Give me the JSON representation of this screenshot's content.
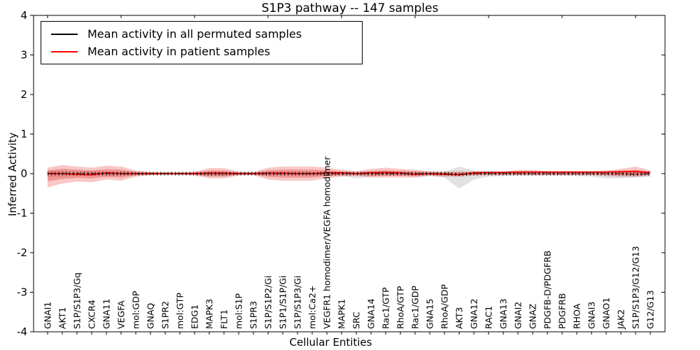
{
  "chart_data": {
    "type": "line",
    "title": "S1P3 pathway -- 147 samples",
    "xlabel": "Cellular Entities",
    "ylabel": "Inferred Activity",
    "ylim": [
      -4,
      4
    ],
    "yticks": [
      "-4",
      "-3",
      "-2",
      "-1",
      "0",
      "1",
      "2",
      "3",
      "4"
    ],
    "grid": false,
    "legend_position": "upper left",
    "sample_count": 147,
    "series": [
      {
        "name": "Mean activity in all permuted samples",
        "color": "#000000",
        "band_color": "#9e9e9e",
        "band_opacity": 0.3
      },
      {
        "name": "Mean activity in patient samples",
        "color": "#ff0000",
        "band_color": "#e53935",
        "band_opacity": 0.28
      }
    ],
    "entities": [
      {
        "label": "GNAI1",
        "permuted_mean": 0.0,
        "permuted_band": [
          -0.1,
          0.08
        ],
        "patient_mean": 0.0,
        "patient_band": [
          -0.35,
          0.15
        ]
      },
      {
        "label": "AKT1",
        "permuted_mean": 0.0,
        "permuted_band": [
          -0.08,
          0.08
        ],
        "patient_mean": 0.0,
        "patient_band": [
          -0.25,
          0.22
        ]
      },
      {
        "label": "S1P/S1P3/Gq",
        "permuted_mean": 0.0,
        "permuted_band": [
          -0.06,
          0.06
        ],
        "patient_mean": -0.02,
        "patient_band": [
          -0.2,
          0.18
        ]
      },
      {
        "label": "CXCR4",
        "permuted_mean": 0.0,
        "permuted_band": [
          -0.06,
          0.06
        ],
        "patient_mean": -0.03,
        "patient_band": [
          -0.22,
          0.15
        ]
      },
      {
        "label": "GNA11",
        "permuted_mean": 0.0,
        "permuted_band": [
          -0.06,
          0.06
        ],
        "patient_mean": 0.02,
        "patient_band": [
          -0.15,
          0.2
        ]
      },
      {
        "label": "VEGFA",
        "permuted_mean": 0.0,
        "permuted_band": [
          -0.06,
          0.06
        ],
        "patient_mean": 0.0,
        "patient_band": [
          -0.18,
          0.18
        ]
      },
      {
        "label": "mol:GDP",
        "permuted_mean": 0.0,
        "permuted_band": [
          -0.04,
          0.04
        ],
        "patient_mean": 0.0,
        "patient_band": [
          -0.08,
          0.08
        ]
      },
      {
        "label": "GNAQ",
        "permuted_mean": 0.0,
        "permuted_band": [
          -0.03,
          0.03
        ],
        "patient_mean": 0.0,
        "patient_band": [
          -0.04,
          0.04
        ]
      },
      {
        "label": "S1PR2",
        "permuted_mean": 0.0,
        "permuted_band": [
          -0.03,
          0.03
        ],
        "patient_mean": 0.0,
        "patient_band": [
          -0.03,
          0.03
        ]
      },
      {
        "label": "mol:GTP",
        "permuted_mean": 0.0,
        "permuted_band": [
          -0.03,
          0.03
        ],
        "patient_mean": 0.0,
        "patient_band": [
          -0.03,
          0.03
        ]
      },
      {
        "label": "EDG1",
        "permuted_mean": 0.0,
        "permuted_band": [
          -0.03,
          0.03
        ],
        "patient_mean": 0.0,
        "patient_band": [
          -0.05,
          0.05
        ]
      },
      {
        "label": "MAPK3",
        "permuted_mean": 0.0,
        "permuted_band": [
          -0.08,
          0.05
        ],
        "patient_mean": 0.01,
        "patient_band": [
          -0.12,
          0.14
        ]
      },
      {
        "label": "FLT1",
        "permuted_mean": 0.0,
        "permuted_band": [
          -0.08,
          0.05
        ],
        "patient_mean": 0.01,
        "patient_band": [
          -0.12,
          0.14
        ]
      },
      {
        "label": "mol:S1P",
        "permuted_mean": 0.0,
        "permuted_band": [
          -0.03,
          0.03
        ],
        "patient_mean": 0.0,
        "patient_band": [
          -0.05,
          0.05
        ]
      },
      {
        "label": "S1PR3",
        "permuted_mean": 0.0,
        "permuted_band": [
          -0.03,
          0.03
        ],
        "patient_mean": 0.0,
        "patient_band": [
          -0.04,
          0.04
        ]
      },
      {
        "label": "S1P/S1P2/Gi",
        "permuted_mean": 0.0,
        "permuted_band": [
          -0.05,
          0.05
        ],
        "patient_mean": 0.01,
        "patient_band": [
          -0.15,
          0.15
        ]
      },
      {
        "label": "S1P1/S1P/Gi",
        "permuted_mean": 0.0,
        "permuted_band": [
          -0.05,
          0.05
        ],
        "patient_mean": 0.01,
        "patient_band": [
          -0.18,
          0.18
        ]
      },
      {
        "label": "S1P/S1P3/Gi",
        "permuted_mean": 0.0,
        "permuted_band": [
          -0.05,
          0.05
        ],
        "patient_mean": 0.0,
        "patient_band": [
          -0.18,
          0.18
        ]
      },
      {
        "label": "mol:Ca2+",
        "permuted_mean": 0.0,
        "permuted_band": [
          -0.05,
          0.05
        ],
        "patient_mean": 0.0,
        "patient_band": [
          -0.18,
          0.18
        ]
      },
      {
        "label": "VEGFR1 homodimer/VEGFA homodimer",
        "permuted_mean": 0.0,
        "permuted_band": [
          -0.05,
          0.05
        ],
        "patient_mean": 0.02,
        "patient_band": [
          -0.12,
          0.15
        ]
      },
      {
        "label": "MAPK1",
        "permuted_mean": 0.0,
        "permuted_band": [
          -0.05,
          0.05
        ],
        "patient_mean": 0.02,
        "patient_band": [
          -0.08,
          0.1
        ]
      },
      {
        "label": "SRC",
        "permuted_mean": 0.0,
        "permuted_band": [
          -0.12,
          0.05
        ],
        "patient_mean": 0.0,
        "patient_band": [
          -0.06,
          0.06
        ]
      },
      {
        "label": "GNA14",
        "permuted_mean": 0.0,
        "permuted_band": [
          -0.08,
          0.05
        ],
        "patient_mean": 0.02,
        "patient_band": [
          -0.1,
          0.12
        ]
      },
      {
        "label": "Rac1/GTP",
        "permuted_mean": 0.0,
        "permuted_band": [
          -0.05,
          0.05
        ],
        "patient_mean": 0.03,
        "patient_band": [
          -0.1,
          0.15
        ]
      },
      {
        "label": "RhoA/GTP",
        "permuted_mean": 0.0,
        "permuted_band": [
          -0.05,
          0.05
        ],
        "patient_mean": 0.02,
        "patient_band": [
          -0.1,
          0.12
        ]
      },
      {
        "label": "Rac1/GDP",
        "permuted_mean": 0.0,
        "permuted_band": [
          -0.08,
          0.05
        ],
        "patient_mean": -0.02,
        "patient_band": [
          -0.1,
          0.1
        ]
      },
      {
        "label": "GNA15",
        "permuted_mean": 0.0,
        "permuted_band": [
          -0.06,
          0.04
        ],
        "patient_mean": 0.0,
        "patient_band": [
          -0.06,
          0.06
        ]
      },
      {
        "label": "RhoA/GDP",
        "permuted_mean": 0.0,
        "permuted_band": [
          -0.1,
          0.05
        ],
        "patient_mean": -0.02,
        "patient_band": [
          -0.08,
          0.05
        ]
      },
      {
        "label": "AKT3",
        "permuted_mean": -0.02,
        "permuted_band": [
          -0.38,
          0.18
        ],
        "patient_mean": -0.03,
        "patient_band": [
          -0.08,
          0.06
        ]
      },
      {
        "label": "GNA12",
        "permuted_mean": 0.0,
        "permuted_band": [
          -0.15,
          0.08
        ],
        "patient_mean": 0.02,
        "patient_band": [
          -0.05,
          0.06
        ]
      },
      {
        "label": "RAC1",
        "permuted_mean": 0.0,
        "permuted_band": [
          -0.08,
          0.06
        ],
        "patient_mean": 0.03,
        "patient_band": [
          -0.04,
          0.05
        ]
      },
      {
        "label": "GNA13",
        "permuted_mean": 0.0,
        "permuted_band": [
          -0.06,
          0.05
        ],
        "patient_mean": 0.03,
        "patient_band": [
          -0.04,
          0.05
        ]
      },
      {
        "label": "GNAI2",
        "permuted_mean": 0.0,
        "permuted_band": [
          -0.05,
          0.05
        ],
        "patient_mean": 0.04,
        "patient_band": [
          -0.04,
          0.09
        ]
      },
      {
        "label": "GNAZ",
        "permuted_mean": 0.0,
        "permuted_band": [
          -0.05,
          0.05
        ],
        "patient_mean": 0.04,
        "patient_band": [
          -0.04,
          0.09
        ]
      },
      {
        "label": "PDGFB-D/PDGFRB",
        "permuted_mean": 0.0,
        "permuted_band": [
          -0.05,
          0.05
        ],
        "patient_mean": 0.04,
        "patient_band": [
          -0.04,
          0.06
        ]
      },
      {
        "label": "PDGFRB",
        "permuted_mean": 0.0,
        "permuted_band": [
          -0.05,
          0.05
        ],
        "patient_mean": 0.04,
        "patient_band": [
          -0.04,
          0.06
        ]
      },
      {
        "label": "RHOA",
        "permuted_mean": 0.0,
        "permuted_band": [
          -0.06,
          0.05
        ],
        "patient_mean": 0.04,
        "patient_band": [
          -0.04,
          0.06
        ]
      },
      {
        "label": "GNAI3",
        "permuted_mean": 0.0,
        "permuted_band": [
          -0.08,
          0.05
        ],
        "patient_mean": 0.04,
        "patient_band": [
          -0.04,
          0.06
        ]
      },
      {
        "label": "GNAO1",
        "permuted_mean": 0.0,
        "permuted_band": [
          -0.12,
          0.06
        ],
        "patient_mean": 0.04,
        "patient_band": [
          -0.06,
          0.08
        ]
      },
      {
        "label": "JAK2",
        "permuted_mean": 0.0,
        "permuted_band": [
          -0.12,
          0.06
        ],
        "patient_mean": 0.05,
        "patient_band": [
          -0.08,
          0.12
        ]
      },
      {
        "label": "S1P/S1P3/G12/G13",
        "permuted_mean": -0.02,
        "permuted_band": [
          -0.1,
          0.06
        ],
        "patient_mean": 0.05,
        "patient_band": [
          -0.08,
          0.18
        ]
      },
      {
        "label": "G12/G13",
        "permuted_mean": 0.0,
        "permuted_band": [
          -0.08,
          0.05
        ],
        "patient_mean": 0.03,
        "patient_band": [
          -0.05,
          0.08
        ]
      }
    ]
  }
}
